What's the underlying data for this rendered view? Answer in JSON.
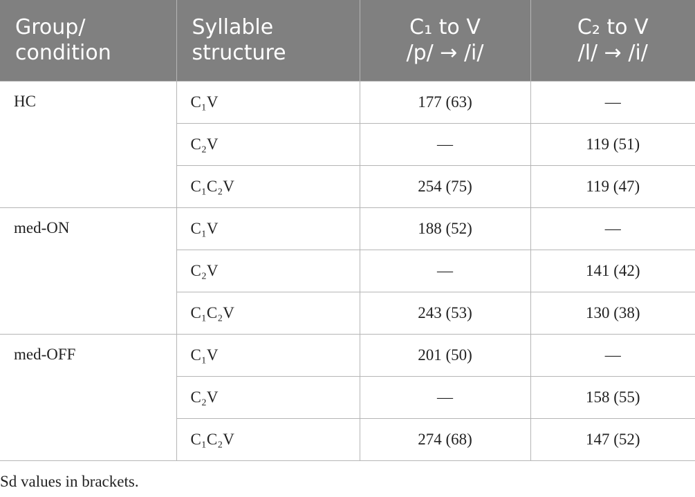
{
  "table": {
    "header": [
      [
        "Group/",
        "condition"
      ],
      [
        "Syllable",
        "structure"
      ],
      [
        "C₁ to V",
        "/p/ → /i/"
      ],
      [
        "C₂ to V",
        "/l/ → /i/"
      ]
    ],
    "groups": [
      {
        "name": "HC",
        "rows": [
          [
            "C₁V",
            "177 (63)",
            "—"
          ],
          [
            "C₂V",
            "—",
            "119 (51)"
          ],
          [
            "C₁C₂V",
            "254 (75)",
            "119 (47)"
          ]
        ]
      },
      {
        "name": "med-ON",
        "rows": [
          [
            "C₁V",
            "188 (52)",
            "—"
          ],
          [
            "C₂V",
            "—",
            "141 (42)"
          ],
          [
            "C₁C₂V",
            "243 (53)",
            "130 (38)"
          ]
        ]
      },
      {
        "name": "med-OFF",
        "rows": [
          [
            "C₁V",
            "201 (50)",
            "—"
          ],
          [
            "C₂V",
            "—",
            "158 (55)"
          ],
          [
            "C₁C₂V",
            "274 (68)",
            "147 (52)"
          ]
        ]
      }
    ],
    "footnote": "Sd values in brackets."
  }
}
